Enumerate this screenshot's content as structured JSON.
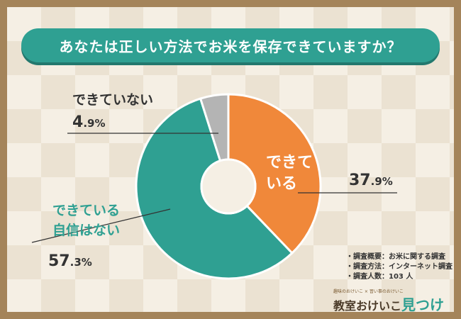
{
  "title": "あなたは正しい方法でお米を保存できていますか？",
  "chart_data": {
    "type": "pie",
    "donut": true,
    "slices": [
      {
        "label_lines": [
          "できて",
          "いる"
        ],
        "pct_main": "37",
        "pct_sub": ".9%",
        "value": 37.9,
        "color": "#f0883a"
      },
      {
        "label_lines": [
          "できている",
          "自信はない"
        ],
        "pct_main": "57",
        "pct_sub": ".3%",
        "value": 57.3,
        "color": "#2fa092"
      },
      {
        "label_lines": [
          "できていない"
        ],
        "pct_main": "4",
        "pct_sub": ".9%",
        "value": 4.9,
        "color": "#b4b4b4"
      }
    ]
  },
  "notes": [
    "・調査概要：お米に関する調査",
    "・調査方法：インターネット調査",
    "・調査人数：103 人"
  ],
  "logo": {
    "top_line": "趣味のおけいこ × 習い事のおけいこ",
    "main_part1": "教室おけいこ",
    "main_accent": "見つけ隊"
  }
}
